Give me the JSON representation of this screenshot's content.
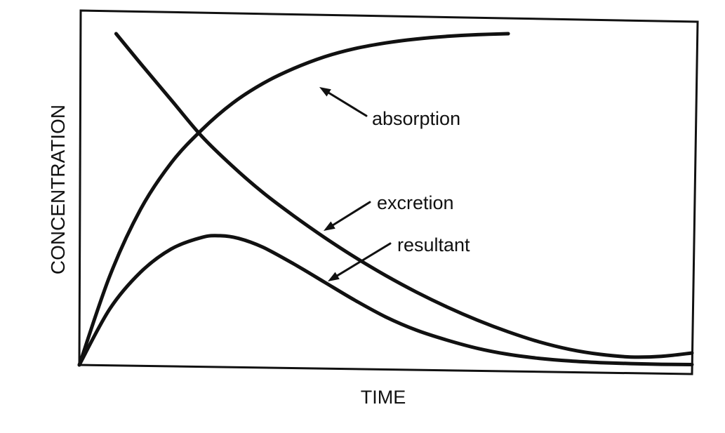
{
  "chart_data": {
    "type": "line",
    "title": "",
    "xlabel": "TIME",
    "ylabel": "CONCENTRATION",
    "xlim": [
      0,
      100
    ],
    "ylim": [
      0,
      100
    ],
    "grid": false,
    "series": [
      {
        "name": "absorption",
        "x": [
          0,
          5,
          10,
          15,
          20,
          25,
          30,
          35,
          40,
          45,
          50,
          55,
          60,
          65,
          70
        ],
        "y": [
          0,
          27,
          47,
          61,
          71,
          79,
          85,
          89.5,
          93,
          95.5,
          97.2,
          98.4,
          99.2,
          99.7,
          100
        ]
      },
      {
        "name": "excretion",
        "x": [
          6,
          10,
          15,
          20,
          25,
          30,
          35,
          40,
          45,
          50,
          55,
          60,
          65,
          70,
          75,
          80,
          85,
          90,
          95,
          100
        ],
        "y": [
          100,
          91,
          80,
          69,
          60,
          52,
          45,
          38.5,
          32.5,
          27,
          22,
          17.5,
          13.5,
          10,
          7,
          4.7,
          3.2,
          2.4,
          2.6,
          3.6
        ]
      },
      {
        "name": "resultant",
        "x": [
          0,
          5,
          10,
          15,
          20,
          23,
          26,
          30,
          35,
          40,
          45,
          50,
          55,
          60,
          65,
          70,
          75,
          80,
          85,
          90,
          95,
          100
        ],
        "y": [
          0,
          17,
          28,
          35,
          38.5,
          39,
          38.2,
          35.5,
          30.5,
          25,
          19.5,
          14.5,
          10.5,
          7.5,
          5,
          3.2,
          2,
          1.2,
          0.7,
          0.4,
          0.2,
          0.1
        ]
      }
    ],
    "annotations": [
      {
        "text": "absorption",
        "points_to_series": "absorption"
      },
      {
        "text": "excretion",
        "points_to_series": "excretion"
      },
      {
        "text": "resultant",
        "points_to_series": "resultant"
      }
    ]
  }
}
